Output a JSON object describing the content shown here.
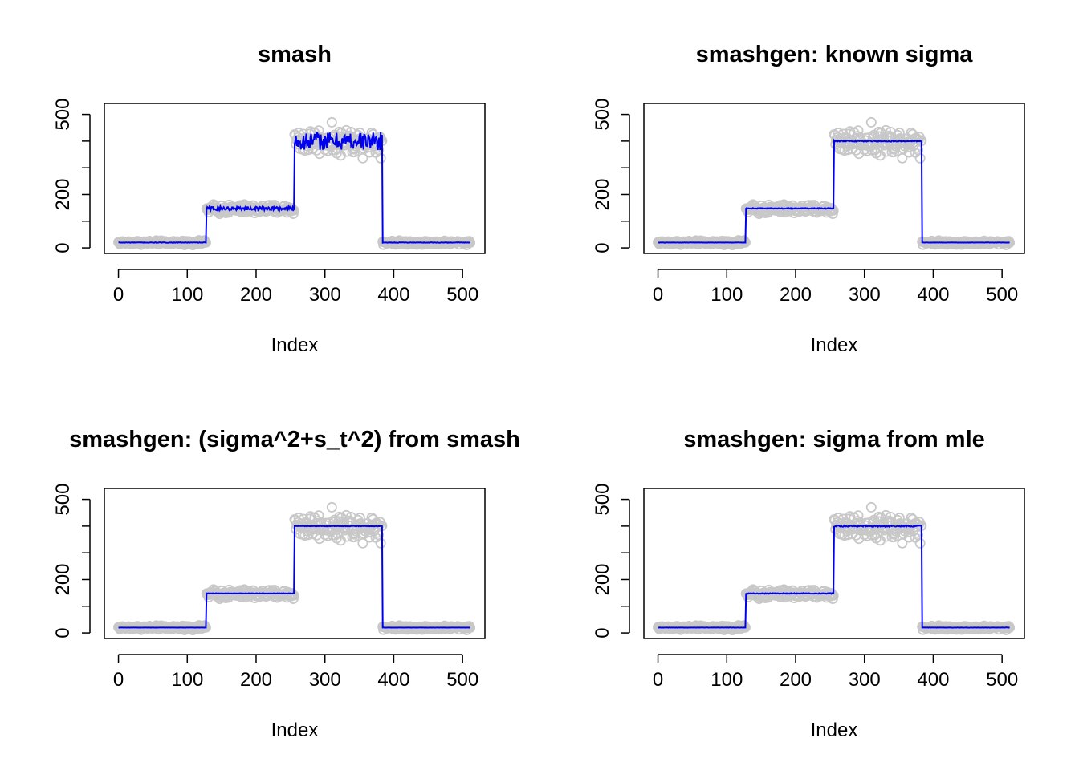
{
  "colors": {
    "points": "#c8c8c8",
    "fit": "#0000ee",
    "axis": "#000000",
    "background": "#ffffff"
  },
  "chart_data": [
    {
      "type": "scatter",
      "title": "smash",
      "xlabel": "Index",
      "ylabel": "",
      "xlim": [
        0,
        512
      ],
      "ylim": [
        0,
        520
      ],
      "xticks": [
        "0",
        "100",
        "200",
        "300",
        "400",
        "500"
      ],
      "yticks": [
        "0",
        "200",
        "500"
      ],
      "series": [
        {
          "kind": "points",
          "segments": [
            [
              0,
              20,
              128
            ],
            [
              128,
              145,
              256
            ],
            [
              256,
              400,
              384
            ],
            [
              384,
              20,
              512
            ]
          ],
          "noise": [
            6,
            15,
            42,
            6
          ]
        },
        {
          "kind": "line",
          "segments": [
            [
              0,
              20,
              128
            ],
            [
              128,
              148,
              256
            ],
            [
              256,
              400,
              384
            ],
            [
              384,
              20,
              512
            ]
          ],
          "wiggle": [
            1,
            7,
            34,
            1
          ]
        }
      ]
    },
    {
      "type": "scatter",
      "title": "smashgen: known sigma",
      "xlabel": "Index",
      "ylabel": "",
      "xlim": [
        0,
        512
      ],
      "ylim": [
        0,
        520
      ],
      "xticks": [
        "0",
        "100",
        "200",
        "300",
        "400",
        "500"
      ],
      "yticks": [
        "0",
        "200",
        "500"
      ],
      "series": [
        {
          "kind": "points",
          "segments": [
            [
              0,
              20,
              128
            ],
            [
              128,
              145,
              256
            ],
            [
              256,
              400,
              384
            ],
            [
              384,
              20,
              512
            ]
          ],
          "noise": [
            6,
            15,
            42,
            6
          ]
        },
        {
          "kind": "line",
          "segments": [
            [
              0,
              20,
              128
            ],
            [
              128,
              148,
              256
            ],
            [
              256,
              400,
              384
            ],
            [
              384,
              20,
              512
            ]
          ],
          "wiggle": [
            0.5,
            1.5,
            2,
            0.5
          ]
        }
      ]
    },
    {
      "type": "scatter",
      "title": "smashgen: (sigma^2+s_t^2) from smash",
      "xlabel": "Index",
      "ylabel": "",
      "xlim": [
        0,
        512
      ],
      "ylim": [
        0,
        520
      ],
      "xticks": [
        "0",
        "100",
        "200",
        "300",
        "400",
        "500"
      ],
      "yticks": [
        "0",
        "200",
        "500"
      ],
      "series": [
        {
          "kind": "points",
          "segments": [
            [
              0,
              20,
              128
            ],
            [
              128,
              145,
              256
            ],
            [
              256,
              400,
              384
            ],
            [
              384,
              20,
              512
            ]
          ],
          "noise": [
            6,
            15,
            42,
            6
          ]
        },
        {
          "kind": "line",
          "segments": [
            [
              0,
              20,
              128
            ],
            [
              128,
              148,
              256
            ],
            [
              256,
              400,
              384
            ],
            [
              384,
              20,
              512
            ]
          ],
          "wiggle": [
            0.3,
            0.8,
            1,
            0.3
          ]
        }
      ]
    },
    {
      "type": "scatter",
      "title": "smashgen: sigma from mle",
      "xlabel": "Index",
      "ylabel": "",
      "xlim": [
        0,
        512
      ],
      "ylim": [
        0,
        520
      ],
      "xticks": [
        "0",
        "100",
        "200",
        "300",
        "400",
        "500"
      ],
      "yticks": [
        "0",
        "200",
        "500"
      ],
      "series": [
        {
          "kind": "points",
          "segments": [
            [
              0,
              20,
              128
            ],
            [
              128,
              145,
              256
            ],
            [
              256,
              400,
              384
            ],
            [
              384,
              20,
              512
            ]
          ],
          "noise": [
            6,
            15,
            42,
            6
          ]
        },
        {
          "kind": "line",
          "segments": [
            [
              0,
              20,
              128
            ],
            [
              128,
              148,
              256
            ],
            [
              256,
              400,
              384
            ],
            [
              384,
              20,
              512
            ]
          ],
          "wiggle": [
            0.5,
            1.5,
            2.5,
            0.5
          ]
        }
      ]
    }
  ]
}
